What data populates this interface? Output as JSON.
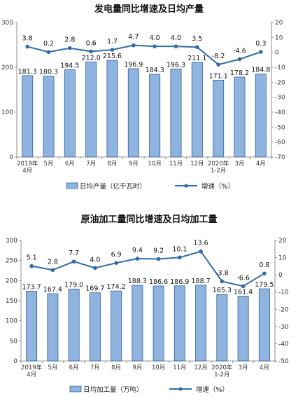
{
  "chart_data": [
    {
      "type": "bar",
      "title": "发电量同比增速及日均产量",
      "categories": [
        "2019年\n4月",
        "5月",
        "6月",
        "7月",
        "8月",
        "9月",
        "10月",
        "11月",
        "12月",
        "2020年\n1-2月",
        "3月",
        "4月"
      ],
      "series": [
        {
          "name": "日均产量（亿千瓦时）",
          "type": "bar",
          "axis": "left",
          "values": [
            181.3,
            180.3,
            194.5,
            212.0,
            215.6,
            196.9,
            184.3,
            196.3,
            211.1,
            171.1,
            178.2,
            184.8
          ],
          "labels": [
            "181.3",
            "180.3",
            "194.5",
            "212.0",
            "215.6",
            "196.9",
            "184.3",
            "196.3",
            "211.1",
            "171.1",
            "178.2",
            "184.8"
          ]
        },
        {
          "name": "增速（%）",
          "type": "line",
          "axis": "right",
          "values": [
            3.8,
            0.2,
            2.8,
            0.6,
            1.7,
            4.7,
            4.0,
            4.0,
            3.5,
            -8.2,
            -4.6,
            0.3
          ],
          "labels": [
            "3.8",
            "0.2",
            "2.8",
            "0.6",
            "1.7",
            "4.7",
            "4.0",
            "4.0",
            "3.5",
            "-8.2",
            "-4.6",
            "0.3"
          ]
        }
      ],
      "ylim_left": [
        0,
        300
      ],
      "yticks_left": [
        "0",
        "100",
        "200",
        "300"
      ],
      "ylim_right": [
        -70,
        20
      ],
      "yticks_right": [
        "20",
        "10",
        "0",
        "-10",
        "-20",
        "-30",
        "-40",
        "-50",
        "-60",
        "-70"
      ],
      "colors": {
        "bar_fill": "#8fb4df",
        "bar_stroke": "#2f5f98",
        "line": "#2f6cab"
      },
      "legend": "bottom"
    },
    {
      "type": "bar",
      "title": "原油加工量同比增速及日均加工量",
      "categories": [
        "2019年\n4月",
        "5月",
        "6月",
        "7月",
        "8月",
        "9月",
        "10月",
        "11月",
        "12月",
        "2020年\n1-2月",
        "3月",
        "4月"
      ],
      "series": [
        {
          "name": "日均加工量（万吨）",
          "type": "bar",
          "axis": "left",
          "values": [
            173.7,
            167.4,
            179.0,
            169.7,
            174.2,
            188.3,
            186.6,
            186.9,
            188.7,
            165.3,
            161.4,
            179.5
          ],
          "labels": [
            "173.7",
            "167.4",
            "179.0",
            "169.7",
            "174.2",
            "188.3",
            "186.6",
            "186.9",
            "188.7",
            "165.3",
            "161.4",
            "179.5"
          ]
        },
        {
          "name": "增速（%）",
          "type": "line",
          "axis": "right",
          "values": [
            5.1,
            2.8,
            7.7,
            4.0,
            6.9,
            9.4,
            9.2,
            10.1,
            13.6,
            -3.8,
            -6.6,
            0.8
          ],
          "labels": [
            "5.1",
            "2.8",
            "7.7",
            "4.0",
            "6.9",
            "9.4",
            "9.2",
            "10.1",
            "13.6",
            "-3.8",
            "-6.6",
            "0.8"
          ]
        }
      ],
      "ylim_left": [
        0,
        300
      ],
      "yticks_left": [
        "0",
        "50",
        "100",
        "150",
        "200",
        "250",
        "300"
      ],
      "ylim_right": [
        -50,
        20
      ],
      "yticks_right": [
        "20",
        "10",
        "0",
        "-10",
        "-20",
        "-30",
        "-40",
        "-50"
      ],
      "colors": {
        "bar_fill": "#8fb4df",
        "bar_stroke": "#2f5f98",
        "line": "#2f6cab"
      },
      "legend": "bottom"
    }
  ]
}
